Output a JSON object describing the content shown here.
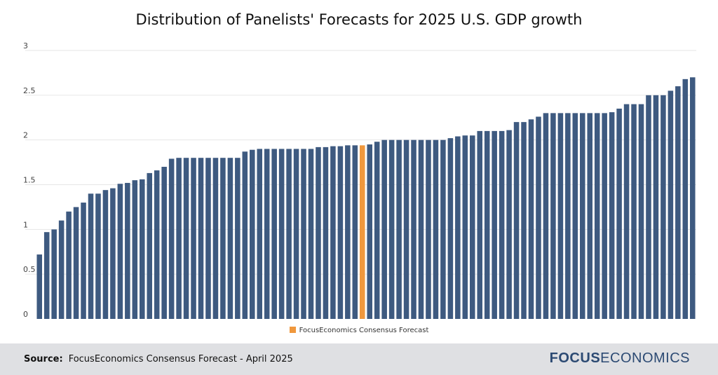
{
  "title": "Distribution of Panelists' Forecasts for 2025 U.S. GDP growth",
  "legend": {
    "label": "FocusEconomics Consensus Forecast"
  },
  "footer": {
    "source_label": "Source:",
    "source_text": "FocusEconomics Consensus Forecast - April 2025",
    "logo_bold": "FOCUS",
    "logo_regular": "ECONOMICS"
  },
  "colors": {
    "bar": "#3e5a80",
    "highlight": "#f0983d",
    "grid": "#e6e6e6",
    "logo": "#2c4a73"
  },
  "chart_data": {
    "type": "bar",
    "title": "Distribution of Panelists' Forecasts for 2025 U.S. GDP growth",
    "xlabel": "",
    "ylabel": "",
    "ylim": [
      0,
      3
    ],
    "yticks": [
      "0",
      "0.5",
      "1",
      "1.5",
      "2",
      "2.5",
      "3"
    ],
    "legend": "bottom-center",
    "highlight_index": 44,
    "values": [
      0.72,
      0.97,
      1.0,
      1.1,
      1.2,
      1.25,
      1.3,
      1.4,
      1.4,
      1.44,
      1.46,
      1.51,
      1.52,
      1.55,
      1.56,
      1.63,
      1.66,
      1.7,
      1.79,
      1.8,
      1.8,
      1.8,
      1.8,
      1.8,
      1.8,
      1.8,
      1.8,
      1.8,
      1.87,
      1.89,
      1.9,
      1.9,
      1.9,
      1.9,
      1.9,
      1.9,
      1.9,
      1.9,
      1.92,
      1.92,
      1.93,
      1.93,
      1.94,
      1.94,
      1.94,
      1.95,
      1.98,
      2.0,
      2.0,
      2.0,
      2.0,
      2.0,
      2.0,
      2.0,
      2.0,
      2.0,
      2.02,
      2.04,
      2.05,
      2.05,
      2.1,
      2.1,
      2.1,
      2.1,
      2.11,
      2.2,
      2.2,
      2.23,
      2.26,
      2.3,
      2.3,
      2.3,
      2.3,
      2.3,
      2.3,
      2.3,
      2.3,
      2.3,
      2.31,
      2.35,
      2.4,
      2.4,
      2.4,
      2.5,
      2.5,
      2.5,
      2.55,
      2.6,
      2.68,
      2.7
    ]
  }
}
